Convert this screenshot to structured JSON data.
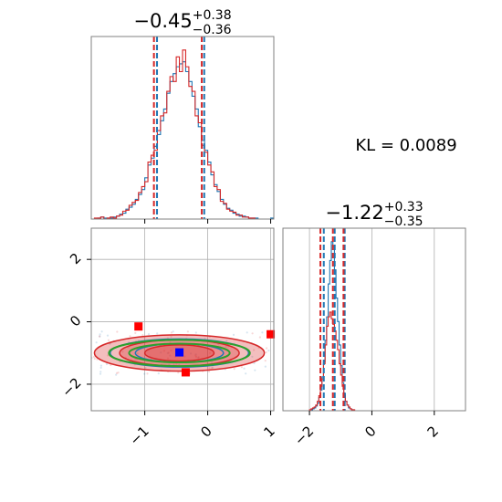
{
  "colors": {
    "red": "#d62728",
    "blue": "#1f77b4",
    "green": "#2ca02c",
    "marker_blue": "#0000ff",
    "marker_red": "#ff0000",
    "grid": "#b0b0b0",
    "spine": "#808080"
  },
  "figure": {
    "kl_label": "KL = 0.0089"
  },
  "chart_data": [
    {
      "type": "histogram",
      "panel": "top-left",
      "parameter": "x1",
      "title_text": {
        "median": "−0.45",
        "upper": "+0.38",
        "lower": "−0.36"
      },
      "xlim": [
        -1.85,
        1.05
      ],
      "xticks": [
        -1,
        0,
        1
      ],
      "quantile_lines": {
        "red": [
          -0.84,
          -0.08
        ],
        "blue": [
          -0.82,
          -0.07
        ]
      },
      "bins": [
        -1.85,
        -1.8,
        -1.75,
        -1.7,
        -1.65,
        -1.6,
        -1.55,
        -1.5,
        -1.45,
        -1.4,
        -1.35,
        -1.3,
        -1.25,
        -1.2,
        -1.15,
        -1.1,
        -1.05,
        -1.0,
        -0.95,
        -0.9,
        -0.85,
        -0.8,
        -0.75,
        -0.7,
        -0.65,
        -0.6,
        -0.55,
        -0.5,
        -0.45,
        -0.4,
        -0.35,
        -0.3,
        -0.25,
        -0.2,
        -0.15,
        -0.1,
        -0.05,
        0.0,
        0.05,
        0.1,
        0.15,
        0.2,
        0.25,
        0.3,
        0.35,
        0.4,
        0.45,
        0.5,
        0.55,
        0.6,
        0.65,
        0.7,
        0.75,
        0.8,
        0.85,
        0.9,
        0.95,
        1.0,
        1.05
      ],
      "series": [
        {
          "color": "blue",
          "counts": [
            0,
            0,
            1,
            2,
            1,
            1,
            1,
            2,
            3,
            5,
            6,
            10,
            12,
            15,
            20,
            25,
            30,
            42,
            55,
            62,
            74,
            86,
            100,
            112,
            128,
            140,
            148,
            155,
            158,
            160,
            150,
            140,
            125,
            112,
            94,
            80,
            70,
            58,
            45,
            35,
            28,
            20,
            15,
            11,
            9,
            6,
            5,
            3,
            3,
            2,
            1,
            1,
            1,
            0,
            0,
            0,
            0,
            1
          ]
        },
        {
          "color": "red",
          "counts": [
            0,
            1,
            1,
            2,
            0,
            1,
            2,
            1,
            3,
            4,
            8,
            9,
            14,
            17,
            19,
            27,
            33,
            38,
            58,
            65,
            70,
            90,
            105,
            108,
            130,
            145,
            140,
            165,
            150,
            172,
            155,
            135,
            130,
            105,
            98,
            75,
            68,
            55,
            48,
            33,
            30,
            18,
            16,
            10,
            8,
            7,
            4,
            4,
            2,
            2,
            1,
            1,
            0,
            0,
            0,
            0,
            0,
            0
          ]
        }
      ]
    },
    {
      "type": "histogram",
      "panel": "bottom-right",
      "parameter": "x2",
      "title_text": {
        "median": "−1.22",
        "upper": "+0.33",
        "lower": "−0.35"
      },
      "xlim": [
        -2.85,
        3.0
      ],
      "xticks": [
        -2,
        0,
        2
      ],
      "quantile_lines": {
        "red": [
          -1.62,
          -1.22,
          -0.88
        ],
        "blue": [
          -1.57,
          -1.22,
          -0.9
        ]
      },
      "bins": [
        -2.0,
        -1.95,
        -1.9,
        -1.85,
        -1.8,
        -1.75,
        -1.7,
        -1.65,
        -1.6,
        -1.55,
        -1.5,
        -1.45,
        -1.4,
        -1.35,
        -1.3,
        -1.25,
        -1.2,
        -1.15,
        -1.1,
        -1.05,
        -1.0,
        -0.95,
        -0.9,
        -0.85,
        -0.8,
        -0.75,
        -0.7,
        -0.65,
        -0.6,
        -0.55,
        -0.5,
        -0.45,
        -0.4
      ],
      "series": [
        {
          "color": "blue",
          "counts": [
            0,
            1,
            2,
            3,
            5,
            8,
            14,
            22,
            36,
            52,
            75,
            100,
            135,
            160,
            180,
            175,
            150,
            120,
            95,
            70,
            48,
            30,
            18,
            10,
            6,
            3,
            2,
            1,
            0,
            0,
            0,
            0
          ]
        },
        {
          "color": "red",
          "counts": [
            1,
            2,
            3,
            4,
            6,
            10,
            16,
            26,
            34,
            50,
            70,
            90,
            100,
            105,
            98,
            92,
            85,
            75,
            65,
            50,
            38,
            26,
            16,
            10,
            6,
            4,
            2,
            1,
            1,
            0,
            0,
            0
          ]
        }
      ]
    },
    {
      "type": "contour",
      "panel": "bottom-left",
      "xlim": [
        -1.85,
        1.05
      ],
      "ylim": [
        -2.85,
        3.0
      ],
      "xticks": [
        -1,
        0,
        1
      ],
      "yticks": [
        -2,
        0,
        2
      ],
      "center": [
        -0.45,
        -1.0
      ],
      "levels": [
        {
          "color": "red",
          "kind": "filled",
          "rx": 1.35,
          "ry": 0.58
        },
        {
          "color": "red",
          "kind": "filled",
          "rx": 0.95,
          "ry": 0.42
        },
        {
          "color": "red",
          "kind": "filled",
          "rx": 0.55,
          "ry": 0.26
        },
        {
          "color": "blue",
          "kind": "line",
          "rx": 1.1,
          "ry": 0.45
        },
        {
          "color": "blue",
          "kind": "line",
          "rx": 0.7,
          "ry": 0.3
        },
        {
          "color": "green",
          "kind": "line",
          "rx": 1.12,
          "ry": 0.42
        },
        {
          "color": "green",
          "kind": "line",
          "rx": 0.8,
          "ry": 0.3
        }
      ],
      "markers": [
        {
          "color": "marker_red",
          "x": -1.1,
          "y": -0.15
        },
        {
          "color": "marker_red",
          "x": 1.0,
          "y": -0.4
        },
        {
          "color": "marker_red",
          "x": -0.35,
          "y": -1.62
        },
        {
          "color": "marker_blue",
          "x": -0.45,
          "y": -0.98
        }
      ]
    }
  ]
}
